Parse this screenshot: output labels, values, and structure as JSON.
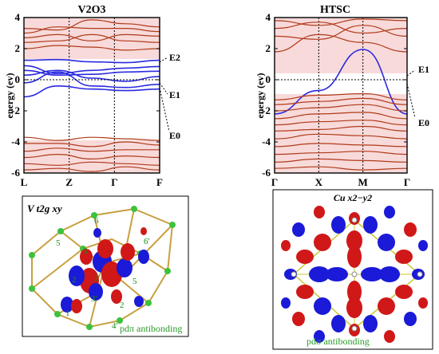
{
  "chart_data": [
    {
      "type": "line",
      "title": "V2O3",
      "ylabel": "energy (ev)",
      "ylim": [
        -6,
        4
      ],
      "yticks": [
        "-6",
        "-4",
        "-2",
        "0",
        "2",
        "4"
      ],
      "kpoints": [
        "L",
        "Z",
        "Γ",
        "F"
      ],
      "fermi_level": 0,
      "annotations": [
        "E2",
        "E1",
        "E0"
      ],
      "series": [
        {
          "group": "t2g",
          "color": "#2a2ae0",
          "values": [
            [
              0,
              1.25
            ],
            [
              0.25,
              1.3
            ],
            [
              0.5,
              1.15
            ],
            [
              0.75,
              1.1
            ],
            [
              1,
              1.25
            ]
          ]
        },
        {
          "group": "t2g",
          "color": "#2a2ae0",
          "values": [
            [
              0,
              0.9
            ],
            [
              0.25,
              0.4
            ],
            [
              0.5,
              0.6
            ],
            [
              0.75,
              0.75
            ],
            [
              1,
              0.85
            ]
          ]
        },
        {
          "group": "t2g",
          "color": "#2a2ae0",
          "values": [
            [
              0,
              0.6
            ],
            [
              0.25,
              0.3
            ],
            [
              0.5,
              0.35
            ],
            [
              0.75,
              0.5
            ],
            [
              1,
              0.55
            ]
          ]
        },
        {
          "group": "t2g",
          "color": "#2a2ae0",
          "values": [
            [
              0,
              0.3
            ],
            [
              0.25,
              0.6
            ],
            [
              0.5,
              0.1
            ],
            [
              0.75,
              -0.1
            ],
            [
              1,
              0.2
            ]
          ]
        },
        {
          "group": "t2g",
          "color": "#2a2ae0",
          "values": [
            [
              0,
              -0.2
            ],
            [
              0.25,
              0.5
            ],
            [
              0.5,
              -0.4
            ],
            [
              0.75,
              -0.5
            ],
            [
              1,
              -0.3
            ]
          ]
        },
        {
          "group": "t2g",
          "color": "#2a2ae0",
          "values": [
            [
              0,
              -1.1
            ],
            [
              0.25,
              -0.4
            ],
            [
              0.5,
              -0.6
            ],
            [
              0.75,
              -0.7
            ],
            [
              1,
              -0.6
            ]
          ]
        },
        {
          "group": "upper",
          "color": "#b03a1a",
          "values": [
            [
              0,
              3.3
            ],
            [
              0.25,
              3.2
            ],
            [
              0.5,
              3.85
            ],
            [
              0.75,
              3.6
            ],
            [
              1,
              3.4
            ]
          ]
        },
        {
          "group": "upper",
          "color": "#b03a1a",
          "values": [
            [
              0,
              3.0
            ],
            [
              0.25,
              3.4
            ],
            [
              0.5,
              3.3
            ],
            [
              0.75,
              3.3
            ],
            [
              1,
              3.1
            ]
          ]
        },
        {
          "group": "upper",
          "color": "#b03a1a",
          "values": [
            [
              0,
              2.7
            ],
            [
              0.25,
              2.9
            ],
            [
              0.5,
              2.5
            ],
            [
              0.75,
              2.9
            ],
            [
              1,
              2.8
            ]
          ]
        },
        {
          "group": "upper",
          "color": "#b03a1a",
          "values": [
            [
              0,
              2.4
            ],
            [
              0.25,
              2.5
            ],
            [
              0.5,
              2.9
            ],
            [
              0.75,
              2.5
            ],
            [
              1,
              2.4
            ]
          ]
        },
        {
          "group": "upper",
          "color": "#b03a1a",
          "values": [
            [
              0,
              2.0
            ],
            [
              0.25,
              2.2
            ],
            [
              0.5,
              2.1
            ],
            [
              0.75,
              1.9
            ],
            [
              1,
              2.0
            ]
          ]
        },
        {
          "group": "lower",
          "color": "#b03a1a",
          "values": [
            [
              0,
              -3.7
            ],
            [
              0.25,
              -3.9
            ],
            [
              0.5,
              -3.7
            ],
            [
              0.75,
              -3.8
            ],
            [
              1,
              -3.9
            ]
          ]
        },
        {
          "group": "lower",
          "color": "#b03a1a",
          "values": [
            [
              0,
              -4.1
            ],
            [
              0.25,
              -4.1
            ],
            [
              0.5,
              -4.3
            ],
            [
              0.75,
              -4.0
            ],
            [
              1,
              -4.2
            ]
          ]
        },
        {
          "group": "lower",
          "color": "#b03a1a",
          "values": [
            [
              0,
              -4.6
            ],
            [
              0.25,
              -4.4
            ],
            [
              0.5,
              -4.6
            ],
            [
              0.75,
              -4.5
            ],
            [
              1,
              -4.5
            ]
          ]
        },
        {
          "group": "lower",
          "color": "#b03a1a",
          "values": [
            [
              0,
              -5.0
            ],
            [
              0.25,
              -4.8
            ],
            [
              0.5,
              -5.1
            ],
            [
              0.75,
              -4.9
            ],
            [
              1,
              -5.0
            ]
          ]
        },
        {
          "group": "lower",
          "color": "#b03a1a",
          "values": [
            [
              0,
              -5.4
            ],
            [
              0.25,
              -5.5
            ],
            [
              0.5,
              -5.3
            ],
            [
              0.75,
              -5.4
            ],
            [
              1,
              -5.5
            ]
          ]
        },
        {
          "group": "lower",
          "color": "#b03a1a",
          "values": [
            [
              0,
              -5.8
            ],
            [
              0.25,
              -5.7
            ],
            [
              0.5,
              -5.9
            ],
            [
              0.75,
              -5.6
            ],
            [
              1,
              -5.8
            ]
          ]
        }
      ]
    },
    {
      "type": "line",
      "title": "HTSC",
      "ylabel": "energy (ev)",
      "ylim": [
        -6,
        4
      ],
      "yticks": [
        "-6",
        "-4",
        "-2",
        "0",
        "2",
        "4"
      ],
      "kpoints": [
        "Γ",
        "X",
        "M",
        "Γ"
      ],
      "fermi_level": 0,
      "annotations": [
        "E1",
        "E0"
      ],
      "series": [
        {
          "group": "x2-y2",
          "color": "#2a2ae0",
          "values": [
            [
              0,
              -2.2
            ],
            [
              0.33,
              -0.7
            ],
            [
              0.67,
              1.95
            ],
            [
              1,
              -2.2
            ]
          ]
        },
        {
          "group": "upper",
          "color": "#b03a1a",
          "values": [
            [
              0,
              3.8
            ],
            [
              0.33,
              3.5
            ],
            [
              0.67,
              3.9
            ],
            [
              1,
              3.8
            ]
          ]
        },
        {
          "group": "upper",
          "color": "#b03a1a",
          "values": [
            [
              0,
              3.3
            ],
            [
              0.33,
              3.7
            ],
            [
              0.67,
              3.0
            ],
            [
              1,
              3.3
            ]
          ]
        },
        {
          "group": "upper",
          "color": "#b03a1a",
          "values": [
            [
              0,
              2.8
            ],
            [
              0.33,
              2.6
            ],
            [
              0.67,
              3.5
            ],
            [
              1,
              2.8
            ]
          ]
        },
        {
          "group": "upper",
          "color": "#b03a1a",
          "values": [
            [
              0,
              1.8
            ],
            [
              0.33,
              2.9
            ],
            [
              0.67,
              2.4
            ],
            [
              1,
              1.8
            ]
          ]
        },
        {
          "group": "lower",
          "color": "#b03a1a",
          "values": [
            [
              0,
              -1.3
            ],
            [
              0.33,
              -1.0
            ],
            [
              0.67,
              -0.9
            ],
            [
              1,
              -1.3
            ]
          ]
        },
        {
          "group": "lower",
          "color": "#b03a1a",
          "values": [
            [
              0,
              -1.6
            ],
            [
              0.33,
              -1.4
            ],
            [
              0.67,
              -1.2
            ],
            [
              1,
              -1.6
            ]
          ]
        },
        {
          "group": "lower",
          "color": "#b03a1a",
          "values": [
            [
              0,
              -2.0
            ],
            [
              0.33,
              -1.8
            ],
            [
              0.67,
              -1.6
            ],
            [
              1,
              -2.0
            ]
          ]
        },
        {
          "group": "lower",
          "color": "#b03a1a",
          "values": [
            [
              0,
              -2.5
            ],
            [
              0.33,
              -2.2
            ],
            [
              0.67,
              -2.1
            ],
            [
              1,
              -2.5
            ]
          ]
        },
        {
          "group": "lower",
          "color": "#b03a1a",
          "values": [
            [
              0,
              -2.9
            ],
            [
              0.33,
              -2.7
            ],
            [
              0.67,
              -2.6
            ],
            [
              1,
              -2.9
            ]
          ]
        },
        {
          "group": "lower",
          "color": "#b03a1a",
          "values": [
            [
              0,
              -3.3
            ],
            [
              0.33,
              -3.2
            ],
            [
              0.67,
              -3.0
            ],
            [
              1,
              -3.3
            ]
          ]
        },
        {
          "group": "lower",
          "color": "#b03a1a",
          "values": [
            [
              0,
              -3.8
            ],
            [
              0.33,
              -3.5
            ],
            [
              0.67,
              -3.6
            ],
            [
              1,
              -3.8
            ]
          ]
        },
        {
          "group": "lower",
          "color": "#b03a1a",
          "values": [
            [
              0,
              -4.3
            ],
            [
              0.33,
              -4.1
            ],
            [
              0.67,
              -4.2
            ],
            [
              1,
              -4.3
            ]
          ]
        },
        {
          "group": "lower",
          "color": "#b03a1a",
          "values": [
            [
              0,
              -4.8
            ],
            [
              0.33,
              -4.7
            ],
            [
              0.67,
              -4.6
            ],
            [
              1,
              -4.8
            ]
          ]
        },
        {
          "group": "lower",
          "color": "#b03a1a",
          "values": [
            [
              0,
              -5.3
            ],
            [
              0.33,
              -5.1
            ],
            [
              0.67,
              -5.2
            ],
            [
              1,
              -5.3
            ]
          ]
        },
        {
          "group": "lower",
          "color": "#b03a1a",
          "values": [
            [
              0,
              -5.7
            ],
            [
              0.33,
              -5.6
            ],
            [
              0.67,
              -5.8
            ],
            [
              1,
              -5.7
            ]
          ]
        }
      ]
    }
  ],
  "orbital_panels": [
    {
      "title": "V t2g xy",
      "caption": "pdπ antibonding",
      "site_labels": [
        "6",
        "5",
        "3",
        "2",
        "6'",
        "5",
        "2",
        "1",
        "3'",
        "2",
        "4'"
      ]
    },
    {
      "title": "Cu x2−y2",
      "caption": "pdσ antibonding"
    }
  ],
  "colors": {
    "t2g_band": "#2a2ae0",
    "other_band": "#b03a1a",
    "lobe_red": "#d01818",
    "lobe_blue": "#1a1ad8",
    "bond": "#c8a040",
    "atom_green": "#3cc23c",
    "caption_green": "#2a9a2a",
    "shade": "#f8dada"
  }
}
